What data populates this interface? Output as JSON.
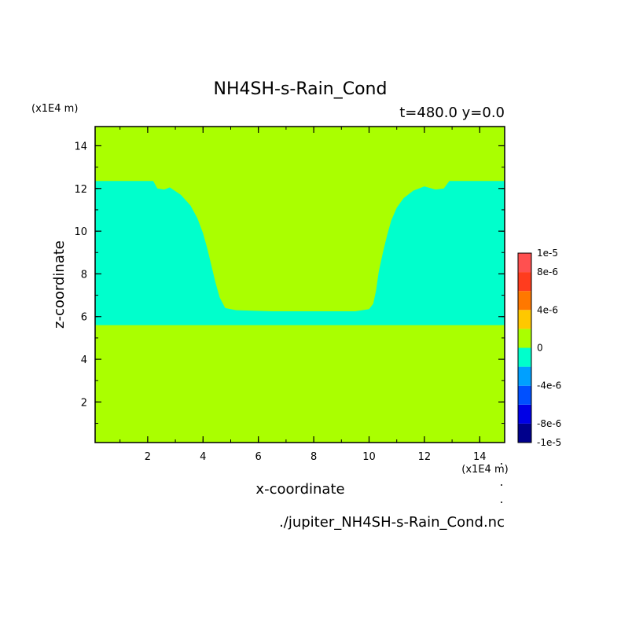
{
  "chart_data": {
    "type": "heatmap",
    "title": "NH4SH-s-Rain_Cond",
    "subtitle": "t=480.0 y=0.0",
    "xlabel": "x-coordinate",
    "ylabel": "z-coordinate",
    "x_unit": "(x1E4 m)",
    "y_unit": "(x1E4 m)",
    "xlim": [
      0.1,
      14.9
    ],
    "ylim": [
      0.1,
      14.9
    ],
    "x_ticks": [
      "2",
      "4",
      "6",
      "8",
      "10",
      "12",
      "14"
    ],
    "y_ticks": [
      "2",
      "4",
      "6",
      "8",
      "10",
      "12",
      "14"
    ],
    "grid": false,
    "colorbar": {
      "colors": [
        "#00008c",
        "#0000e6",
        "#0050ff",
        "#00a0ff",
        "#00ffcc",
        "#aaff00",
        "#ffc800",
        "#ff7800",
        "#ff3c1e",
        "#ff5050"
      ],
      "labels": [
        "-1e-5",
        "-8e-6",
        "-4e-6",
        "0",
        "4e-6",
        "8e-6",
        "1e-5"
      ],
      "label_levels": [
        -1e-05,
        -8e-06,
        -4e-06,
        0,
        4e-06,
        8e-06,
        1e-05
      ],
      "boundaries": [
        -1e-05,
        -8e-06,
        -6e-06,
        -4e-06,
        -2e-06,
        0,
        2e-06,
        4e-06,
        6e-06,
        8e-06,
        1e-05
      ]
    },
    "background_value_range": [
      0,
      2e-06
    ],
    "regions": [
      {
        "value_range": [
          -2e-06,
          0
        ],
        "color": "#00ffcc",
        "outline": [
          [
            0.1,
            5.6
          ],
          [
            14.9,
            5.6
          ],
          [
            14.9,
            12.35
          ],
          [
            12.9,
            12.35
          ],
          [
            12.7,
            12.0
          ],
          [
            12.4,
            11.95
          ],
          [
            12.0,
            12.1
          ],
          [
            11.6,
            11.9
          ],
          [
            11.25,
            11.55
          ],
          [
            11.0,
            11.1
          ],
          [
            10.8,
            10.5
          ],
          [
            10.65,
            9.8
          ],
          [
            10.5,
            9.0
          ],
          [
            10.35,
            8.1
          ],
          [
            10.25,
            7.2
          ],
          [
            10.15,
            6.6
          ],
          [
            10.0,
            6.35
          ],
          [
            9.5,
            6.25
          ],
          [
            6.5,
            6.25
          ],
          [
            5.2,
            6.3
          ],
          [
            4.8,
            6.4
          ],
          [
            4.6,
            6.9
          ],
          [
            4.45,
            7.6
          ],
          [
            4.3,
            8.4
          ],
          [
            4.15,
            9.2
          ],
          [
            4.0,
            9.9
          ],
          [
            3.8,
            10.6
          ],
          [
            3.55,
            11.2
          ],
          [
            3.2,
            11.7
          ],
          [
            2.8,
            12.05
          ],
          [
            2.6,
            11.95
          ],
          [
            2.35,
            12.0
          ],
          [
            2.2,
            12.35
          ],
          [
            0.1,
            12.35
          ]
        ]
      }
    ],
    "footer": "./jupiter_NH4SH-s-Rain_Cond.nc"
  }
}
